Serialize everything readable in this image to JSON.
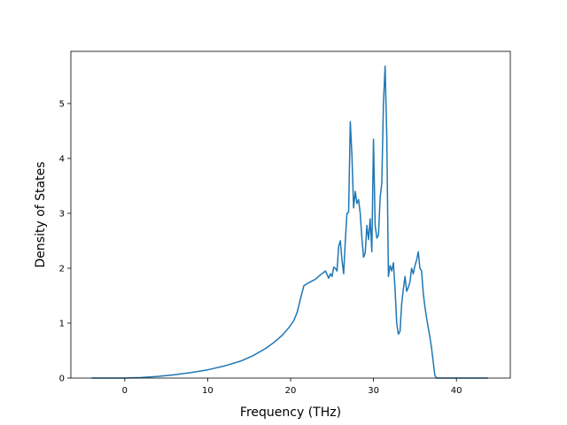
{
  "chart_data": {
    "type": "line",
    "title": "",
    "xlabel": "Frequency (THz)",
    "ylabel": "Density of States",
    "xlim": [
      -6.5,
      46.5
    ],
    "ylim": [
      0,
      5.95
    ],
    "grid": false,
    "legend": "none",
    "x_ticks": [
      0,
      10,
      20,
      30,
      40
    ],
    "y_ticks": [
      0,
      1,
      2,
      3,
      4,
      5
    ],
    "x_tick_labels": [
      "0",
      "10",
      "20",
      "30",
      "40"
    ],
    "y_tick_labels": [
      "0",
      "1",
      "2",
      "3",
      "4",
      "5"
    ],
    "series": [
      {
        "color": "#1f77b4",
        "x": [
          -4.0,
          0.0,
          2.0,
          4.0,
          6.0,
          8.0,
          10.0,
          12.0,
          14.0,
          15.5,
          17.0,
          18.0,
          19.0,
          19.8,
          20.4,
          20.8,
          21.2,
          21.6,
          22.0,
          22.5,
          23.0,
          23.6,
          24.2,
          24.6,
          24.8,
          25.0,
          25.2,
          25.4,
          25.6,
          25.8,
          26.0,
          26.2,
          26.4,
          26.6,
          26.8,
          27.0,
          27.2,
          27.4,
          27.6,
          27.8,
          28.0,
          28.2,
          28.4,
          28.6,
          28.8,
          29.0,
          29.2,
          29.4,
          29.6,
          29.8,
          30.0,
          30.2,
          30.4,
          30.6,
          30.8,
          31.0,
          31.2,
          31.4,
          31.6,
          31.8,
          32.0,
          32.2,
          32.4,
          32.6,
          32.8,
          33.0,
          33.2,
          33.4,
          33.6,
          33.8,
          34.0,
          34.2,
          34.4,
          34.6,
          34.8,
          35.0,
          35.2,
          35.4,
          35.6,
          35.8,
          36.0,
          36.2,
          36.4,
          36.6,
          36.8,
          37.0,
          37.2,
          37.4,
          37.6,
          37.8,
          38.0,
          38.4,
          38.8,
          39.2,
          39.6,
          39.8,
          40.0,
          41.0,
          43.8
        ],
        "values": [
          0.0,
          0.0,
          0.01,
          0.03,
          0.06,
          0.1,
          0.15,
          0.22,
          0.31,
          0.41,
          0.54,
          0.65,
          0.78,
          0.92,
          1.05,
          1.2,
          1.45,
          1.68,
          1.72,
          1.76,
          1.8,
          1.88,
          1.95,
          1.82,
          1.9,
          1.85,
          2.02,
          2.0,
          1.95,
          2.4,
          2.5,
          2.15,
          1.9,
          2.5,
          3.0,
          3.02,
          4.67,
          4.05,
          3.1,
          3.4,
          3.18,
          3.25,
          3.0,
          2.55,
          2.2,
          2.28,
          2.78,
          2.52,
          2.9,
          2.3,
          4.35,
          2.78,
          2.55,
          2.6,
          3.28,
          3.55,
          5.0,
          5.68,
          4.42,
          1.85,
          2.05,
          1.95,
          2.1,
          1.62,
          1.0,
          0.8,
          0.85,
          1.35,
          1.62,
          1.85,
          1.58,
          1.65,
          1.75,
          2.0,
          1.9,
          2.05,
          2.15,
          2.3,
          2.0,
          1.95,
          1.55,
          1.3,
          1.1,
          0.92,
          0.75,
          0.55,
          0.3,
          0.05,
          0.0,
          0.0,
          0.0,
          0.0,
          0.0,
          0.0,
          0.0,
          0.0,
          0.0,
          0.0,
          0.0
        ]
      }
    ]
  }
}
